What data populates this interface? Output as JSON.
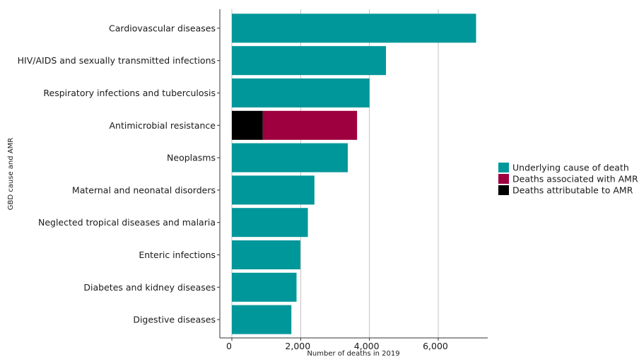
{
  "chart_data": {
    "type": "bar",
    "orientation": "horizontal",
    "stacked": true,
    "xlabel": "Number of deaths in 2019",
    "ylabel": "GBD cause and AMR",
    "xlim": [
      0,
      7500
    ],
    "xticks": [
      0,
      2000,
      4000,
      6000
    ],
    "xtick_labels": [
      "0",
      "2,000",
      "4,000",
      "6,000"
    ],
    "grid": "vertical",
    "legend_position": "right",
    "categories": [
      "Cardiovascular diseases",
      "HIV/AIDS and sexually transmitted infections",
      "Respiratory infections and tuberculosis",
      "Antimicrobial resistance",
      "Neoplasms",
      "Maternal and neonatal disorders",
      "Neglected tropical diseases and malaria",
      "Enteric infections",
      "Diabetes and kidney diseases",
      "Digestive diseases"
    ],
    "series": [
      {
        "name": "Underlying cause of death",
        "color": "#00979A",
        "values": [
          7100,
          4480,
          4000,
          0,
          3370,
          2400,
          2210,
          1990,
          1880,
          1730
        ]
      },
      {
        "name": "Deaths associated with AMR",
        "color": "#9E003F",
        "values": [
          0,
          0,
          0,
          2740,
          0,
          0,
          0,
          0,
          0,
          0
        ]
      },
      {
        "name": "Deaths attributable to AMR",
        "color": "#000000",
        "values": [
          0,
          0,
          0,
          900,
          0,
          0,
          0,
          0,
          0,
          0
        ]
      }
    ],
    "stack_order_left_to_right": [
      "Deaths attributable to AMR",
      "Deaths associated with AMR",
      "Underlying cause of death"
    ]
  }
}
